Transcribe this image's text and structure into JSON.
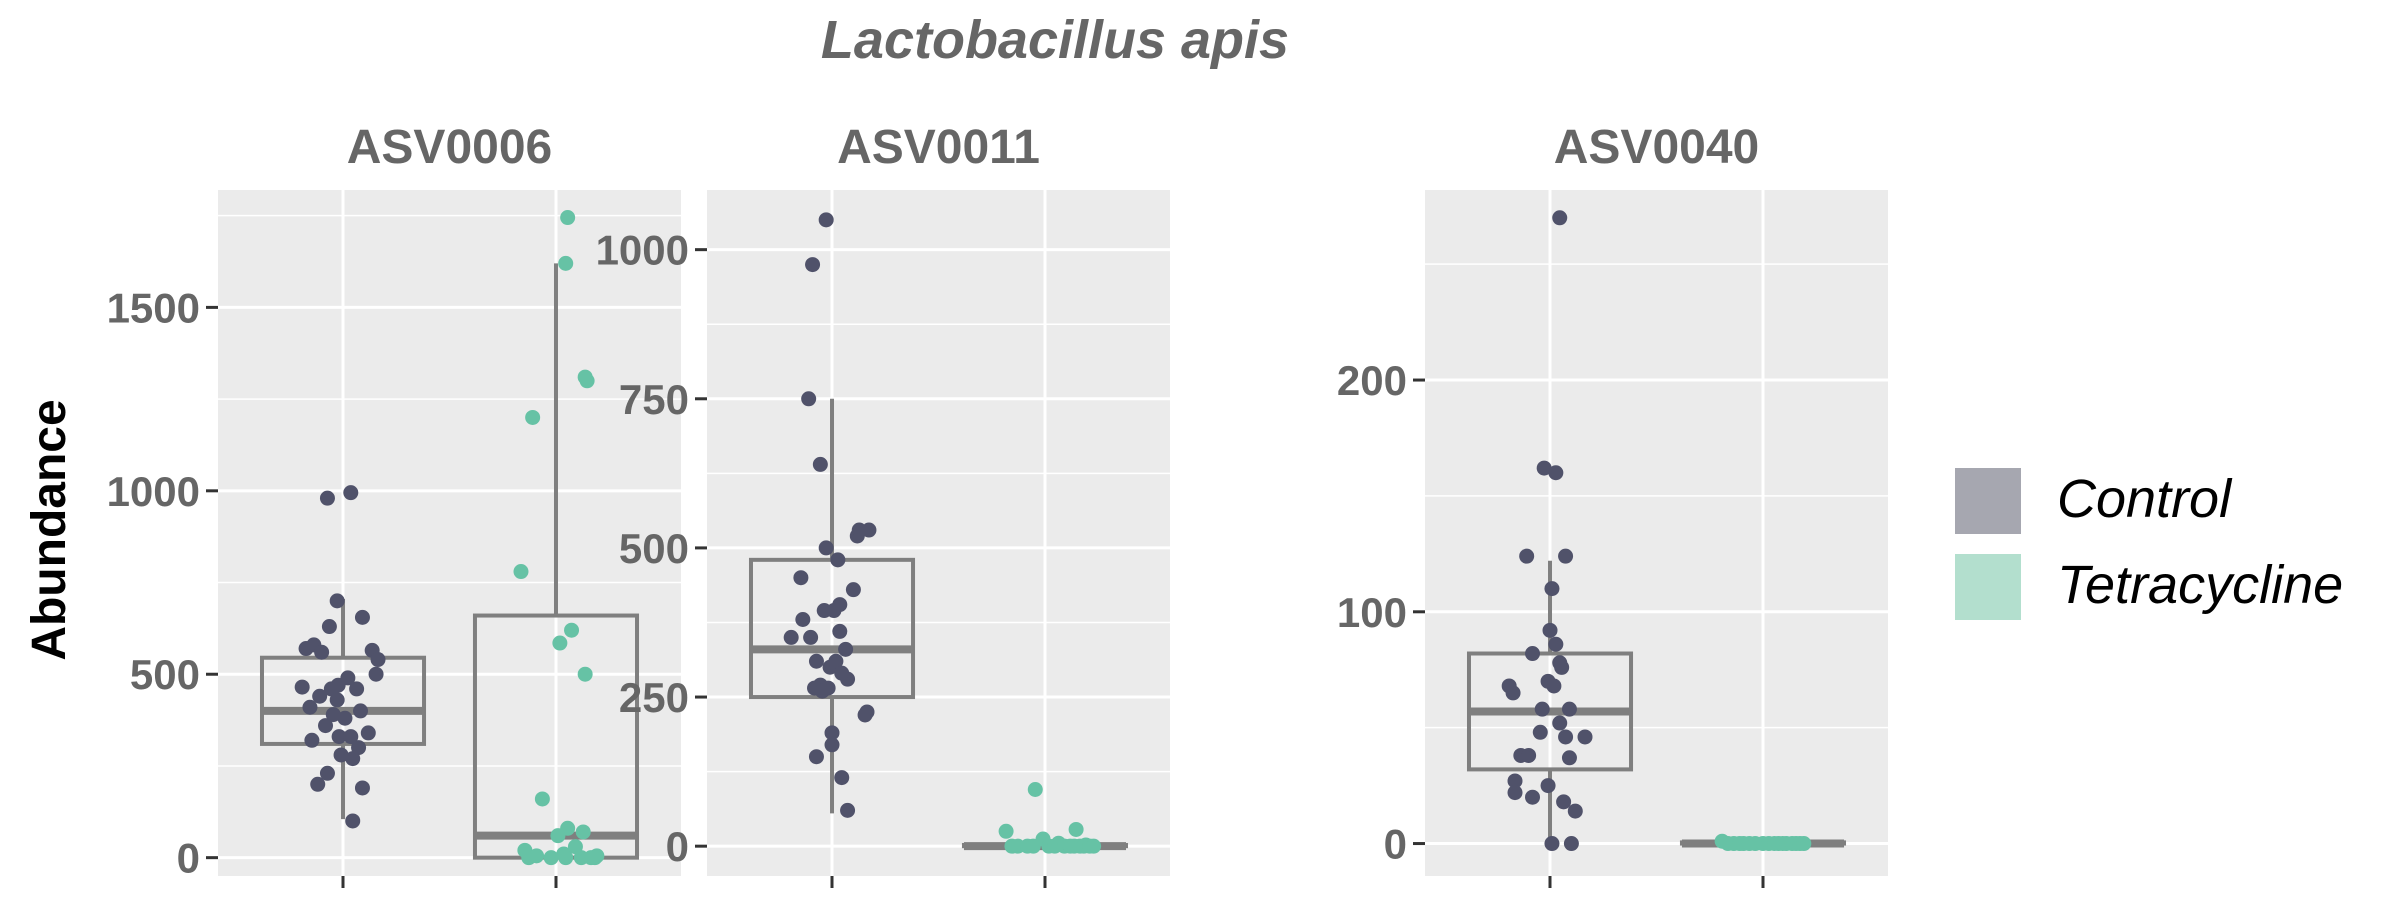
{
  "chart_data": {
    "type": "boxplot",
    "title": "Lactobacillus apis",
    "ylabel": "Abundance",
    "xlabel": "",
    "groups": [
      "Control",
      "Tetracycline"
    ],
    "legend": {
      "position": "right",
      "entries": [
        {
          "name": "Control",
          "fill": "#a6a7b0",
          "point": "#50526a"
        },
        {
          "name": "Tetracycline",
          "fill": "#b3dfce",
          "point": "#66c2a5"
        }
      ]
    },
    "box_color": "#7f7f7f",
    "panel_background": "#ebebeb",
    "grid": true,
    "panels": [
      {
        "name": "ASV0006",
        "ylim": [
          -50,
          1820
        ],
        "yticks": [
          0,
          500,
          1000,
          1500
        ],
        "minor_yticks": [
          250,
          750,
          1250,
          1750
        ],
        "boxes": [
          {
            "group": "Control",
            "min": 105,
            "q1": 310,
            "median": 400,
            "q3": 545,
            "max": 705
          },
          {
            "group": "Tetracycline",
            "min": 0,
            "q1": 0,
            "median": 60,
            "q3": 660,
            "max": 1620
          }
        ],
        "points": [
          [
            [
              -0.42,
              465
            ],
            [
              -0.38,
              570
            ],
            [
              -0.3,
              580
            ],
            [
              -0.34,
              410
            ],
            [
              -0.22,
              560
            ],
            [
              -0.14,
              630
            ],
            [
              -0.06,
              700
            ],
            [
              -0.32,
              320
            ],
            [
              -0.18,
              360
            ],
            [
              -0.05,
              470
            ],
            [
              0.05,
              490
            ],
            [
              0.14,
              460
            ],
            [
              0.2,
              655
            ],
            [
              0.3,
              565
            ],
            [
              0.36,
              540
            ],
            [
              0.34,
              500
            ],
            [
              -0.24,
              440
            ],
            [
              -0.12,
              460
            ],
            [
              -0.04,
              330
            ],
            [
              0.08,
              330
            ],
            [
              0.16,
              300
            ],
            [
              0.26,
              340
            ],
            [
              -0.26,
              200
            ],
            [
              -0.16,
              230
            ],
            [
              -0.02,
              280
            ],
            [
              0.1,
              270
            ],
            [
              0.2,
              190
            ],
            [
              -0.1,
              390
            ],
            [
              0.02,
              380
            ],
            [
              0.18,
              400
            ],
            [
              -0.16,
              980
            ],
            [
              0.08,
              995
            ],
            [
              0.1,
              100
            ],
            [
              -0.06,
              430
            ]
          ],
          [
            [
              -0.36,
              780
            ],
            [
              -0.24,
              1200
            ],
            [
              0.12,
              1745
            ],
            [
              0.1,
              1620
            ],
            [
              0.3,
              1310
            ],
            [
              0.32,
              1300
            ],
            [
              0.04,
              585
            ],
            [
              0.16,
              620
            ],
            [
              0.3,
              500
            ],
            [
              -0.14,
              160
            ],
            [
              -0.32,
              20
            ],
            [
              -0.28,
              0
            ],
            [
              -0.2,
              5
            ],
            [
              -0.05,
              0
            ],
            [
              0.08,
              10
            ],
            [
              0.1,
              0
            ],
            [
              0.12,
              80
            ],
            [
              0.2,
              30
            ],
            [
              0.26,
              0
            ],
            [
              0.28,
              70
            ],
            [
              0.36,
              0
            ],
            [
              0.4,
              0
            ],
            [
              0.42,
              5
            ],
            [
              0.02,
              60
            ]
          ]
        ]
      },
      {
        "name": "ASV0011",
        "ylim": [
          -50,
          1100
        ],
        "yticks": [
          0,
          250,
          500,
          750,
          1000
        ],
        "minor_yticks": [
          125,
          375,
          625,
          875
        ],
        "boxes": [
          {
            "group": "Control",
            "min": 55,
            "q1": 250,
            "median": 330,
            "q3": 480,
            "max": 750
          },
          {
            "group": "Tetracycline",
            "min": 0,
            "q1": 0,
            "median": 0,
            "q3": 2,
            "max": 5
          }
        ],
        "points": [
          [
            [
              -0.42,
              350
            ],
            [
              -0.32,
              450
            ],
            [
              -0.24,
              750
            ],
            [
              -0.12,
              640
            ],
            [
              -0.2,
              975
            ],
            [
              -0.06,
              1050
            ],
            [
              -0.3,
              380
            ],
            [
              -0.22,
              350
            ],
            [
              -0.16,
              310
            ],
            [
              -0.12,
              270
            ],
            [
              -0.06,
              500
            ],
            [
              0.06,
              480
            ],
            [
              -0.18,
              265
            ],
            [
              -0.1,
              260
            ],
            [
              -0.02,
              300
            ],
            [
              0.04,
              310
            ],
            [
              0.08,
              360
            ],
            [
              0.16,
              280
            ],
            [
              0.22,
              430
            ],
            [
              0.26,
              520
            ],
            [
              0.28,
              530
            ],
            [
              0.38,
              530
            ],
            [
              -0.08,
              395
            ],
            [
              0.02,
              395
            ],
            [
              0.08,
              405
            ],
            [
              0.14,
              330
            ],
            [
              0.1,
              290
            ],
            [
              0.0,
              190
            ],
            [
              0.0,
              170
            ],
            [
              0.1,
              115
            ],
            [
              -0.16,
              150
            ],
            [
              0.16,
              60
            ],
            [
              0.36,
              225
            ],
            [
              0.34,
              220
            ],
            [
              -0.04,
              265
            ]
          ],
          [
            [
              -0.4,
              25
            ],
            [
              -0.34,
              0
            ],
            [
              -0.28,
              0
            ],
            [
              -0.18,
              0
            ],
            [
              -0.12,
              0
            ],
            [
              -0.1,
              95
            ],
            [
              -0.02,
              12
            ],
            [
              0.04,
              0
            ],
            [
              0.1,
              0
            ],
            [
              0.14,
              5
            ],
            [
              0.2,
              0
            ],
            [
              0.26,
              0
            ],
            [
              0.3,
              0
            ],
            [
              0.32,
              28
            ],
            [
              0.36,
              0
            ],
            [
              0.4,
              0
            ],
            [
              0.42,
              2
            ],
            [
              0.46,
              0
            ],
            [
              0.5,
              0
            ]
          ]
        ]
      },
      {
        "name": "ASV0040",
        "ylim": [
          -14,
          282
        ],
        "yticks": [
          0,
          100,
          200
        ],
        "minor_yticks": [
          50,
          150,
          250
        ],
        "boxes": [
          {
            "group": "Control",
            "min": 0,
            "q1": 32,
            "median": 57,
            "q3": 82,
            "max": 122
          },
          {
            "group": "Tetracycline",
            "min": 0,
            "q1": 0,
            "median": 0,
            "q3": 0.5,
            "max": 1
          }
        ],
        "points": [
          [
            [
              -0.42,
              68
            ],
            [
              -0.38,
              65
            ],
            [
              -0.36,
              27
            ],
            [
              -0.3,
              38
            ],
            [
              -0.36,
              22
            ],
            [
              -0.24,
              124
            ],
            [
              -0.18,
              82
            ],
            [
              -0.22,
              38
            ],
            [
              -0.18,
              20
            ],
            [
              -0.1,
              48
            ],
            [
              -0.08,
              58
            ],
            [
              -0.02,
              70
            ],
            [
              0.02,
              110
            ],
            [
              0.0,
              92
            ],
            [
              -0.06,
              162
            ],
            [
              0.06,
              160
            ],
            [
              0.04,
              68
            ],
            [
              0.06,
              86
            ],
            [
              0.1,
              78
            ],
            [
              0.12,
              76
            ],
            [
              0.1,
              52
            ],
            [
              0.16,
              124
            ],
            [
              0.2,
              58
            ],
            [
              0.16,
              46
            ],
            [
              0.14,
              18
            ],
            [
              0.2,
              37
            ],
            [
              0.26,
              14
            ],
            [
              0.36,
              46
            ],
            [
              -0.02,
              25
            ],
            [
              0.02,
              0
            ],
            [
              0.22,
              0
            ],
            [
              0.1,
              270
            ]
          ],
          [
            [
              -0.42,
              1
            ],
            [
              -0.36,
              0
            ],
            [
              -0.3,
              0
            ],
            [
              -0.24,
              0
            ],
            [
              -0.2,
              0
            ],
            [
              -0.14,
              0
            ],
            [
              -0.08,
              0
            ],
            [
              0.0,
              0
            ],
            [
              0.06,
              0
            ],
            [
              0.12,
              0
            ],
            [
              0.16,
              0
            ],
            [
              0.2,
              0
            ],
            [
              0.24,
              0
            ],
            [
              0.3,
              0
            ],
            [
              0.34,
              0
            ],
            [
              0.38,
              0
            ],
            [
              0.42,
              0
            ]
          ]
        ]
      }
    ]
  }
}
